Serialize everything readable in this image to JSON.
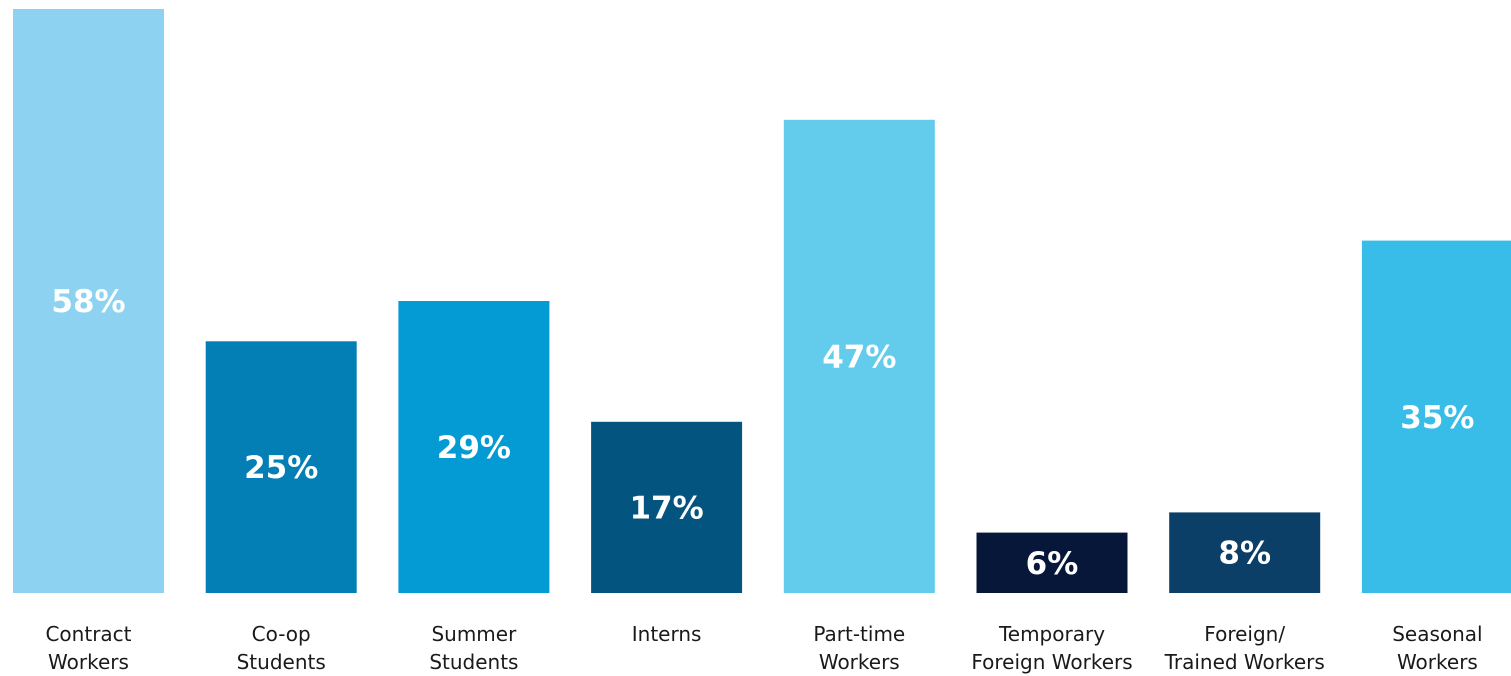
{
  "chart_data": {
    "type": "bar",
    "categories": [
      [
        "Contract",
        "Workers"
      ],
      [
        "Co-op",
        "Students"
      ],
      [
        "Summer",
        "Students"
      ],
      [
        "Interns"
      ],
      [
        "Part-time",
        "Workers"
      ],
      [
        "Temporary",
        "Foreign Workers"
      ],
      [
        "Foreign/",
        "Trained Workers"
      ],
      [
        "Seasonal",
        "Workers"
      ]
    ],
    "values": [
      58,
      25,
      29,
      17,
      47,
      6,
      8,
      35
    ],
    "value_labels": [
      "58%",
      "25%",
      "29%",
      "17%",
      "47%",
      "6%",
      "8%",
      "35%"
    ],
    "colors": [
      "#8dd3f1",
      "#037fb5",
      "#049ad3",
      "#03557f",
      "#63cbec",
      "#06173a",
      "#0b3f67",
      "#37bde8"
    ],
    "unit": "%",
    "ylim": [
      0,
      58
    ],
    "grid": false,
    "legend": "none"
  }
}
